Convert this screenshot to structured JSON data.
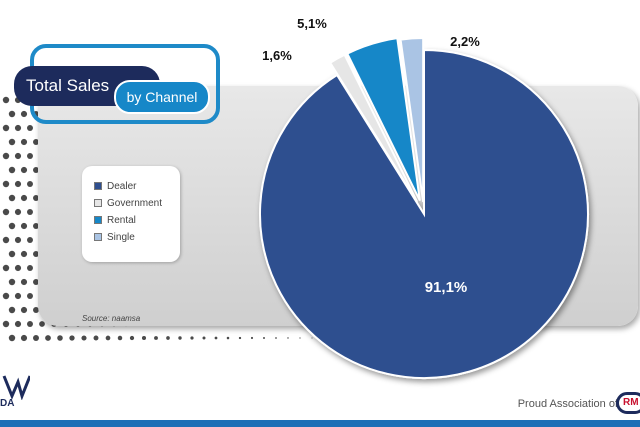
{
  "header": {
    "title": "Total Sales",
    "subtitle": "by Channel"
  },
  "legend": {
    "items": [
      {
        "label": "Dealer",
        "color": "#2f4f8f"
      },
      {
        "label": "Government",
        "color": "#e6e6e6"
      },
      {
        "label": "Rental",
        "color": "#1687c8"
      },
      {
        "label": "Single",
        "color": "#aac4e4"
      }
    ]
  },
  "source": "Source: naamsa",
  "footer": {
    "association_text": "Proud Association of",
    "logo_text": "RM"
  },
  "corner": {
    "text": "DA"
  },
  "chart_data": {
    "type": "pie",
    "title": "Total Sales by Channel",
    "slices": [
      {
        "label": "Dealer",
        "value": 91.1,
        "display": "91,1%",
        "color": "#2f4f8f"
      },
      {
        "label": "Government",
        "value": 1.6,
        "display": "1,6%",
        "color": "#e6e6e6"
      },
      {
        "label": "Rental",
        "value": 5.1,
        "display": "5,1%",
        "color": "#1687c8"
      },
      {
        "label": "Single",
        "value": 2.2,
        "display": "2,2%",
        "color": "#aac4e4"
      }
    ],
    "exploded": [
      "Government",
      "Rental",
      "Single"
    ],
    "legend_position": "left"
  }
}
